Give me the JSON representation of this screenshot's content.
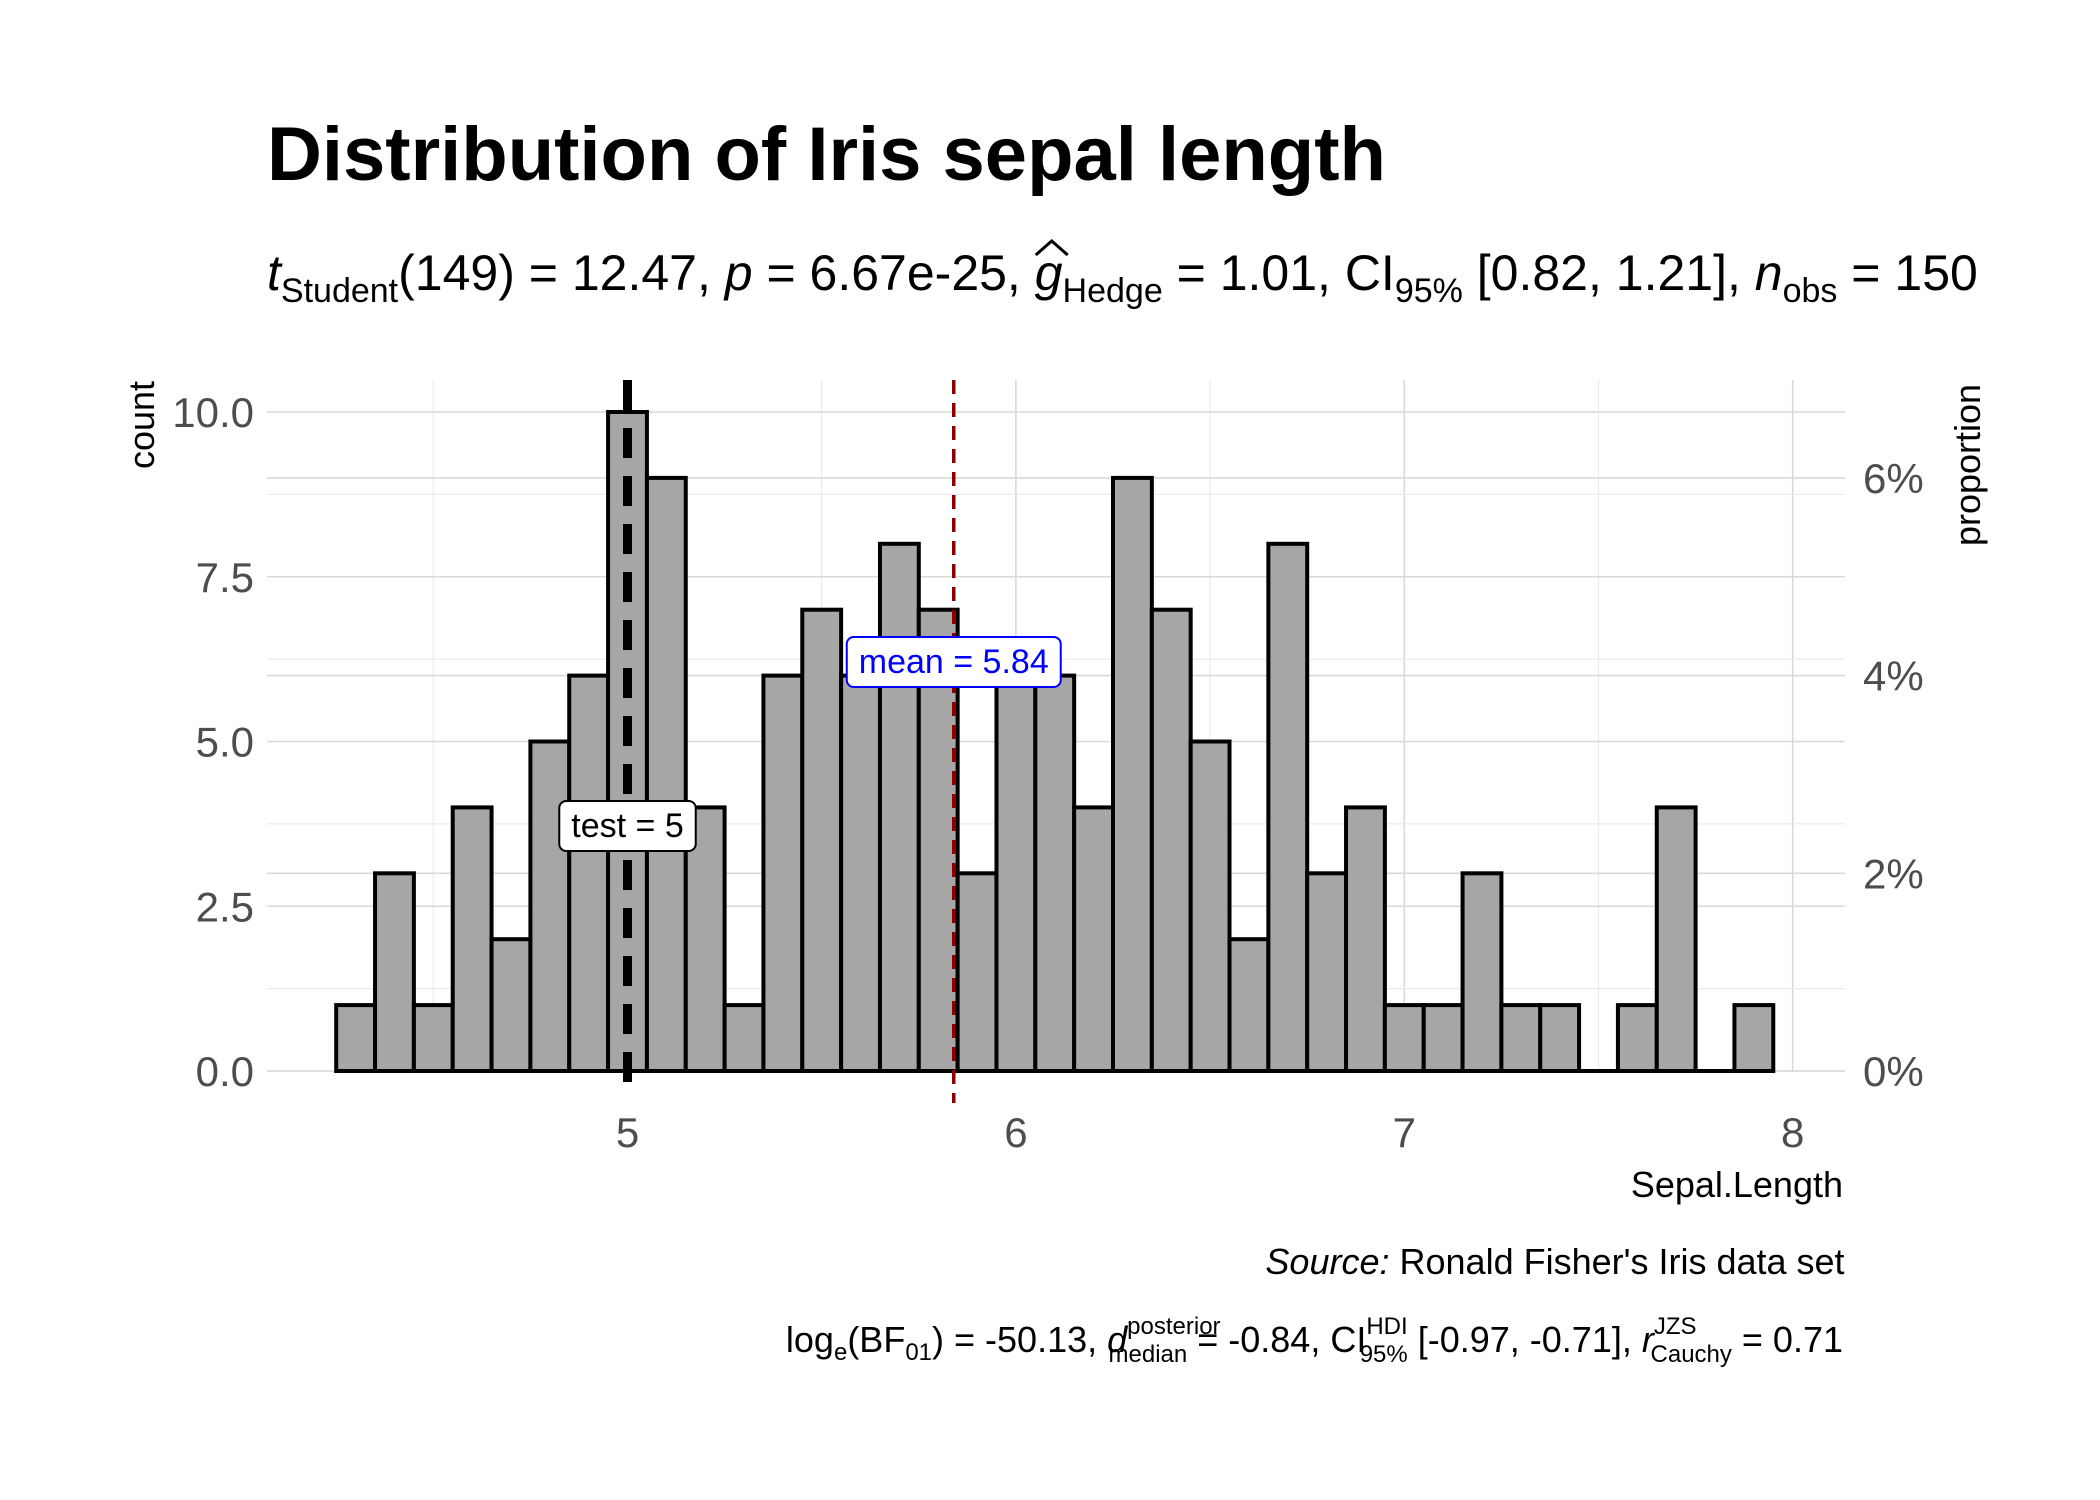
{
  "chart_data": {
    "type": "histogram",
    "title": "Distribution of Iris sepal length",
    "subtitle": {
      "t_label": "t",
      "t_sub": "Student",
      "df": "(149) = 12.47, ",
      "p_label": "p",
      "p_value": " = 6.67e-25, ",
      "g_label": "g",
      "g_sub": "Hedge",
      "g_value": " = 1.01, CI",
      "ci_sub": "95%",
      "ci_value": " [0.82, 1.21], ",
      "n_label": "n",
      "n_sub": "obs",
      "n_value": " = 150"
    },
    "xlabel": "Sepal.Length",
    "ylabel": "count",
    "ylabel_right": "proportion",
    "xlim": [
      4.2,
      8.1
    ],
    "ylim": [
      0,
      10.5
    ],
    "x_ticks": [
      5,
      6,
      7,
      8
    ],
    "x_tick_labels": [
      "5",
      "6",
      "7",
      "8"
    ],
    "y_ticks": [
      0,
      2.5,
      5,
      7.5,
      10
    ],
    "y_tick_labels": [
      "0.0",
      "2.5",
      "5.0",
      "7.5",
      "10.0"
    ],
    "y_right_ticks": [
      0,
      2,
      4,
      6
    ],
    "y_right_tick_labels": [
      "0%",
      "2%",
      "4%",
      "6%"
    ],
    "bin_width": 0.1,
    "bin_starts": [
      4.25,
      4.35,
      4.45,
      4.55,
      4.65,
      4.75,
      4.85,
      4.95,
      5.05,
      5.15,
      5.25,
      5.35,
      5.45,
      5.55,
      5.65,
      5.75,
      5.85,
      5.95,
      6.05,
      6.15,
      6.25,
      6.35,
      6.45,
      6.55,
      6.65,
      6.75,
      6.85,
      6.95,
      7.05,
      7.15,
      7.25,
      7.35,
      7.45,
      7.55,
      7.65,
      7.75,
      7.85
    ],
    "counts": [
      1,
      3,
      1,
      4,
      2,
      5,
      6,
      10,
      9,
      4,
      1,
      6,
      7,
      6,
      8,
      7,
      3,
      6,
      6,
      4,
      9,
      7,
      5,
      2,
      8,
      3,
      4,
      1,
      1,
      3,
      1,
      1,
      0,
      1,
      4,
      0,
      1
    ],
    "test_value": 5,
    "test_label": "test = 5",
    "mean_value": 5.84,
    "mean_label": "mean = 5.84",
    "colors": {
      "bar_fill": "#a6a6a6",
      "mean_line": "#8b0000",
      "mean_label": "#0000ff",
      "test_line": "#000000"
    },
    "caption": {
      "source_label": "Source:",
      "source_text": " Ronald Fisher's Iris data set",
      "bf_prefix": "log",
      "bf_e": "e",
      "bf_mid": "(BF",
      "bf_sub": "01",
      "bf_value": ") = -50.13, ",
      "d_label": "d",
      "d_sup": "posterior",
      "d_sub": "median",
      "d_value": " = -0.84, CI",
      "ci_sup": "HDI",
      "ci_sub": "95%",
      "ci_value": " [-0.97, -0.71], ",
      "r_label": "r",
      "r_sup": "JZS",
      "r_sub": "Cauchy",
      "r_value": " = 0.71"
    }
  }
}
